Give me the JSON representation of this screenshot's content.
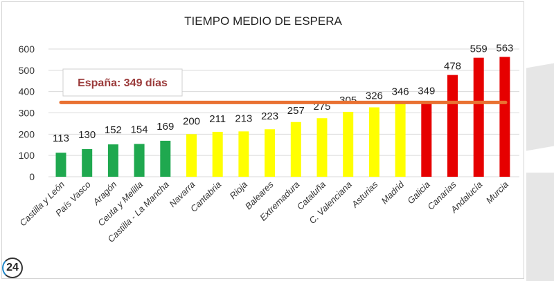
{
  "chart_data": {
    "type": "bar",
    "title": "TIEMPO MEDIO DE ESPERA",
    "xlabel": "",
    "ylabel": "",
    "ylim": [
      0,
      600
    ],
    "yticks": [
      0,
      100,
      200,
      300,
      400,
      500,
      600
    ],
    "grid": true,
    "categories": [
      "Castilla y León",
      "País Vasco",
      "Aragón",
      "Ceuta y Melilla",
      "Castilla - La Mancha",
      "Navarra",
      "Cantabria",
      "Rioja",
      "Baleares",
      "Extremadura",
      "Cataluña",
      "C. Valenciana",
      "Asturias",
      "Madrid",
      "Galicia",
      "Canarias",
      "Andalucía",
      "Murcia"
    ],
    "values": [
      113,
      130,
      152,
      154,
      169,
      200,
      211,
      213,
      223,
      257,
      275,
      305,
      326,
      346,
      349,
      478,
      559,
      563
    ],
    "colors": [
      "#1fa84f",
      "#1fa84f",
      "#1fa84f",
      "#1fa84f",
      "#1fa84f",
      "#ffff00",
      "#ffff00",
      "#ffff00",
      "#ffff00",
      "#ffff00",
      "#ffff00",
      "#ffff00",
      "#ffff00",
      "#ffff00",
      "#e60000",
      "#e60000",
      "#e60000",
      "#e60000"
    ],
    "reference_line": {
      "value": 349,
      "color": "#e97132",
      "label": "España: 349 días"
    }
  },
  "logo": {
    "text": "24"
  }
}
